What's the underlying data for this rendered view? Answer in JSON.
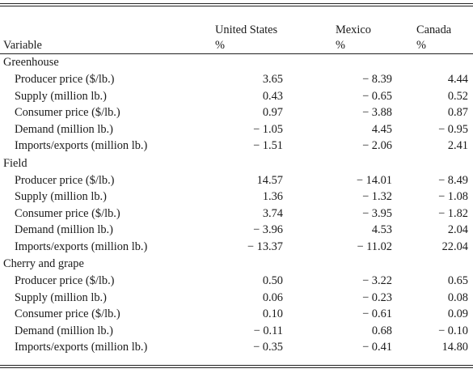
{
  "columns": {
    "variable": "Variable",
    "us": {
      "name": "United States",
      "unit": "%"
    },
    "mexico": {
      "name": "Mexico",
      "unit": "%"
    },
    "canada": {
      "name": "Canada",
      "unit": "%"
    }
  },
  "groups": [
    {
      "name": "Greenhouse",
      "rows": [
        {
          "label": "Producer price ($/lb.)",
          "us": "3.65",
          "mexico": "− 8.39",
          "canada": "4.44"
        },
        {
          "label": "Supply (million lb.)",
          "us": "0.43",
          "mexico": "− 0.65",
          "canada": "0.52"
        },
        {
          "label": "Consumer price ($/lb.)",
          "us": "0.97",
          "mexico": "− 3.88",
          "canada": "0.87"
        },
        {
          "label": "Demand (million lb.)",
          "us": "− 1.05",
          "mexico": "4.45",
          "canada": "− 0.95"
        },
        {
          "label": "Imports/exports (million lb.)",
          "us": "− 1.51",
          "mexico": "− 2.06",
          "canada": "2.41"
        }
      ]
    },
    {
      "name": "Field",
      "rows": [
        {
          "label": "Producer price ($/lb.)",
          "us": "14.57",
          "mexico": "− 14.01",
          "canada": "− 8.49"
        },
        {
          "label": "Supply (million lb.)",
          "us": "1.36",
          "mexico": "− 1.32",
          "canada": "− 1.08"
        },
        {
          "label": "Consumer price ($/lb.)",
          "us": "3.74",
          "mexico": "− 3.95",
          "canada": "− 1.82"
        },
        {
          "label": "Demand (million lb.)",
          "us": "− 3.96",
          "mexico": "4.53",
          "canada": "2.04"
        },
        {
          "label": "Imports/exports (million lb.)",
          "us": "− 13.37",
          "mexico": "− 11.02",
          "canada": "22.04"
        }
      ]
    },
    {
      "name": "Cherry and grape",
      "rows": [
        {
          "label": "Producer price ($/lb.)",
          "us": "0.50",
          "mexico": "− 3.22",
          "canada": "0.65"
        },
        {
          "label": "Supply (million lb.)",
          "us": "0.06",
          "mexico": "− 0.23",
          "canada": "0.08"
        },
        {
          "label": "Consumer price ($/lb.)",
          "us": "0.10",
          "mexico": "− 0.61",
          "canada": "0.09"
        },
        {
          "label": "Demand (million lb.)",
          "us": "− 0.11",
          "mexico": "0.68",
          "canada": "− 0.10"
        },
        {
          "label": "Imports/exports (million lb.)",
          "us": "− 0.35",
          "mexico": "− 0.41",
          "canada": "14.80"
        }
      ]
    }
  ]
}
